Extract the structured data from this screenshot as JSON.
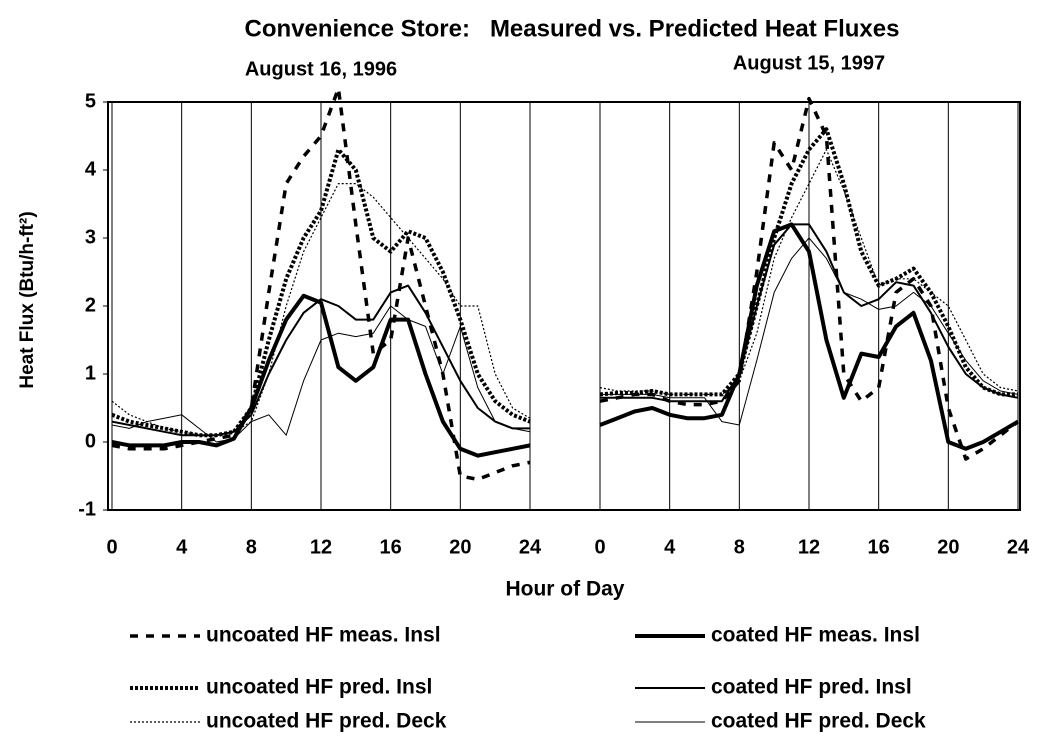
{
  "chart_data": {
    "type": "line",
    "title": "Convenience Store:   Measured vs. Predicted Heat Fluxes",
    "ylabel": "Heat Flux (Btu/h-ft²)",
    "xlabel": "Hour of Day",
    "ylim": [
      -1,
      5
    ],
    "yticks": [
      -1,
      0,
      1,
      2,
      3,
      4,
      5
    ],
    "grid": true,
    "panels": [
      {
        "subtitle": "August 16, 1996",
        "x": [
          0,
          1,
          2,
          3,
          4,
          5,
          6,
          7,
          8,
          9,
          10,
          11,
          12,
          13,
          14,
          15,
          16,
          17,
          18,
          19,
          20,
          21,
          22,
          23,
          24
        ],
        "xlim": [
          0,
          24
        ],
        "xticks": [
          0,
          4,
          8,
          12,
          16,
          20,
          24
        ]
      },
      {
        "subtitle": "August 15, 1997",
        "x": [
          0,
          1,
          2,
          3,
          4,
          5,
          6,
          7,
          8,
          9,
          10,
          11,
          12,
          13,
          14,
          15,
          16,
          17,
          18,
          19,
          20,
          21,
          22,
          23,
          24
        ],
        "xlim": [
          0,
          24
        ],
        "xticks": [
          0,
          4,
          8,
          12,
          16,
          20,
          24
        ]
      }
    ],
    "series": [
      {
        "name": "uncoated HF meas. Insl",
        "color": "#000000",
        "style": "dashed",
        "values": [
          [
            -0.05,
            -0.1,
            -0.1,
            -0.1,
            -0.05,
            0,
            0.05,
            0.1,
            0.5,
            2.2,
            3.8,
            4.2,
            4.5,
            5.2,
            3.2,
            1.3,
            1.5,
            3.0,
            2.0,
            1.0,
            -0.5,
            -0.55,
            -0.45,
            -0.35,
            -0.3
          ],
          [
            0.6,
            0.65,
            0.7,
            0.7,
            0.6,
            0.55,
            0.55,
            0.6,
            0.9,
            2.5,
            4.4,
            4.0,
            5.05,
            4.5,
            1.0,
            0.6,
            0.8,
            2.2,
            2.4,
            2.0,
            0.5,
            -0.25,
            -0.1,
            0.1,
            0.3
          ]
        ]
      },
      {
        "name": "uncoated HF pred. Insl",
        "color": "#000000",
        "style": "thick-dotted",
        "values": [
          [
            0.4,
            0.3,
            0.25,
            0.2,
            0.15,
            0.1,
            0.1,
            0.15,
            0.5,
            1.5,
            2.4,
            3.0,
            3.4,
            4.3,
            4.0,
            3.0,
            2.8,
            3.1,
            3.0,
            2.5,
            1.8,
            1.0,
            0.6,
            0.4,
            0.3
          ],
          [
            0.7,
            0.72,
            0.72,
            0.75,
            0.7,
            0.7,
            0.7,
            0.7,
            1.0,
            2.0,
            3.0,
            3.8,
            4.3,
            4.6,
            3.8,
            2.8,
            2.3,
            2.4,
            2.55,
            2.2,
            1.7,
            1.1,
            0.8,
            0.7,
            0.7
          ]
        ]
      },
      {
        "name": "uncoated HF pred. Deck",
        "color": "#000000",
        "style": "dotted",
        "values": [
          [
            0.6,
            0.4,
            0.3,
            0.2,
            0.15,
            0.1,
            0.1,
            0.15,
            0.3,
            1.0,
            2.0,
            2.8,
            3.3,
            3.8,
            3.8,
            3.6,
            3.3,
            3.0,
            2.7,
            2.4,
            2.0,
            2.0,
            1.0,
            0.5,
            0.35
          ],
          [
            0.8,
            0.75,
            0.75,
            0.75,
            0.7,
            0.7,
            0.7,
            0.7,
            0.9,
            1.6,
            2.7,
            3.3,
            3.8,
            4.3,
            3.7,
            3.0,
            2.3,
            2.4,
            2.4,
            2.2,
            2.0,
            1.5,
            1.0,
            0.8,
            0.75
          ]
        ]
      },
      {
        "name": "coated HF meas. Insl",
        "color": "#000000",
        "style": "thick-solid",
        "values": [
          [
            0,
            -0.05,
            -0.05,
            -0.05,
            0,
            0,
            -0.05,
            0.05,
            0.5,
            1.2,
            1.8,
            2.15,
            2.05,
            1.1,
            0.9,
            1.1,
            1.8,
            1.8,
            1.0,
            0.3,
            -0.1,
            -0.2,
            -0.15,
            -0.1,
            -0.05
          ],
          [
            0.25,
            0.35,
            0.45,
            0.5,
            0.4,
            0.35,
            0.35,
            0.4,
            1.0,
            2.3,
            3.1,
            3.2,
            2.8,
            1.5,
            0.65,
            1.3,
            1.25,
            1.7,
            1.9,
            1.2,
            0,
            -0.1,
            0,
            0.15,
            0.3
          ]
        ]
      },
      {
        "name": "coated HF pred. Insl",
        "color": "#000000",
        "style": "solid",
        "values": [
          [
            0.3,
            0.25,
            0.2,
            0.15,
            0.1,
            0.1,
            0.1,
            0.15,
            0.4,
            1.0,
            1.5,
            1.9,
            2.1,
            2.0,
            1.8,
            1.8,
            2.2,
            2.3,
            1.9,
            1.4,
            0.9,
            0.5,
            0.3,
            0.2,
            0.2
          ],
          [
            0.65,
            0.65,
            0.65,
            0.65,
            0.6,
            0.6,
            0.6,
            0.6,
            1.0,
            2.0,
            2.9,
            3.2,
            3.2,
            2.8,
            2.2,
            2.0,
            2.1,
            2.35,
            2.3,
            1.9,
            1.4,
            1.0,
            0.8,
            0.7,
            0.65
          ]
        ]
      },
      {
        "name": "coated HF pred. Deck",
        "color": "#000000",
        "style": "thin-solid",
        "values": [
          [
            0.25,
            0.2,
            0.3,
            0.35,
            0.4,
            0.2,
            0,
            0.05,
            0.3,
            0.4,
            0.1,
            0.9,
            1.5,
            1.6,
            1.55,
            1.6,
            2.0,
            1.8,
            1.7,
            1.0,
            1.7,
            0.8,
            0.3,
            0.2,
            0.15
          ],
          [
            0.7,
            0.7,
            0.7,
            0.7,
            0.65,
            0.65,
            0.65,
            0.3,
            0.25,
            1.2,
            2.2,
            2.7,
            3.0,
            2.7,
            2.2,
            2.1,
            1.95,
            2.0,
            2.2,
            2.0,
            1.6,
            1.2,
            0.9,
            0.75,
            0.7
          ]
        ]
      }
    ]
  }
}
